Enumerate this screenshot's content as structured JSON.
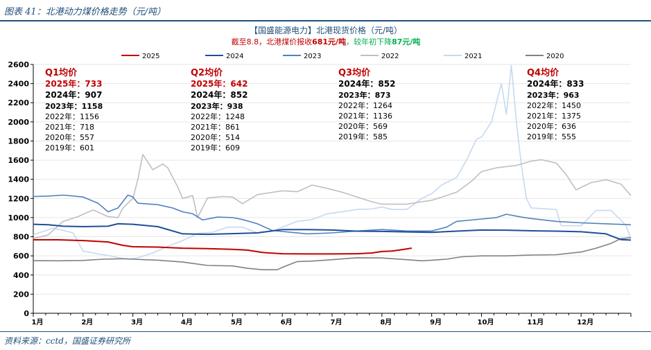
{
  "figure_title": "图表 41：北港动力煤价格走势（元/吨）",
  "source": "资料来源：cctd，国盛证券研究所",
  "colors": {
    "2025": "#c00000",
    "2024": "#1f4e99",
    "2023": "#4f81bd",
    "2022": "#bfbfbf",
    "2021": "#c5d9f1",
    "2020": "#808080",
    "q_title": "#c00000",
    "rule": "#1f4e79",
    "green": "#00b050"
  },
  "chart_data": {
    "type": "line",
    "title": "【国盛能源电力】北港现货价格（元/吨）",
    "subtitle_parts": [
      {
        "text": "截至8.8，北港煤价报收",
        "color": "red"
      },
      {
        "text": "681元/吨",
        "color": "red"
      },
      {
        "text": "，较年初下降",
        "color": "green"
      },
      {
        "text": "87元/吨",
        "color": "green"
      }
    ],
    "ylim": [
      0,
      2600
    ],
    "yticks": [
      "0",
      "200",
      "400",
      "600",
      "800",
      "1000",
      "1200",
      "1400",
      "1600",
      "1800",
      "2000",
      "2200",
      "2400",
      "2600"
    ],
    "xticks": [
      "1月",
      "2月",
      "3月",
      "4月",
      "5月",
      "6月",
      "7月",
      "8月",
      "9月",
      "10月",
      "11月",
      "12月"
    ],
    "legend": [
      "2025",
      "2024",
      "2023",
      "2022",
      "2021",
      "2020"
    ],
    "legend_position": "top",
    "series": [
      {
        "name": "2025",
        "points": [
          [
            0,
            768
          ],
          [
            0.5,
            768
          ],
          [
            1,
            760
          ],
          [
            1.5,
            745
          ],
          [
            1.8,
            710
          ],
          [
            2,
            695
          ],
          [
            2.5,
            692
          ],
          [
            3,
            680
          ],
          [
            3.5,
            675
          ],
          [
            4,
            668
          ],
          [
            4.3,
            660
          ],
          [
            4.6,
            635
          ],
          [
            5,
            622
          ],
          [
            5.5,
            620
          ],
          [
            6,
            620
          ],
          [
            6.5,
            622
          ],
          [
            6.8,
            630
          ],
          [
            7,
            645
          ],
          [
            7.2,
            650
          ],
          [
            7.4,
            665
          ],
          [
            7.6,
            681
          ]
        ]
      },
      {
        "name": "2024",
        "points": [
          [
            0,
            930
          ],
          [
            0.3,
            925
          ],
          [
            0.6,
            910
          ],
          [
            1,
            905
          ],
          [
            1.5,
            910
          ],
          [
            1.7,
            935
          ],
          [
            2,
            930
          ],
          [
            2.5,
            905
          ],
          [
            3,
            830
          ],
          [
            3.5,
            825
          ],
          [
            4,
            832
          ],
          [
            4.5,
            840
          ],
          [
            5,
            875
          ],
          [
            5.5,
            875
          ],
          [
            6,
            870
          ],
          [
            6.5,
            858
          ],
          [
            7,
            855
          ],
          [
            7.5,
            850
          ],
          [
            8,
            845
          ],
          [
            8.5,
            858
          ],
          [
            9,
            870
          ],
          [
            9.5,
            868
          ],
          [
            10,
            862
          ],
          [
            10.5,
            858
          ],
          [
            11,
            852
          ],
          [
            11.5,
            830
          ],
          [
            11.8,
            770
          ],
          [
            12,
            765
          ]
        ]
      },
      {
        "name": "2023",
        "points": [
          [
            0,
            1220
          ],
          [
            0.3,
            1225
          ],
          [
            0.6,
            1235
          ],
          [
            1,
            1215
          ],
          [
            1.3,
            1150
          ],
          [
            1.5,
            1060
          ],
          [
            1.7,
            1100
          ],
          [
            1.9,
            1235
          ],
          [
            2,
            1215
          ],
          [
            2.1,
            1150
          ],
          [
            2.5,
            1135
          ],
          [
            2.8,
            1100
          ],
          [
            3,
            1060
          ],
          [
            3.2,
            1040
          ],
          [
            3.4,
            975
          ],
          [
            3.7,
            1005
          ],
          [
            4,
            1000
          ],
          [
            4.2,
            980
          ],
          [
            4.5,
            935
          ],
          [
            4.8,
            865
          ],
          [
            5,
            855
          ],
          [
            5.5,
            830
          ],
          [
            6,
            840
          ],
          [
            6.5,
            860
          ],
          [
            7,
            875
          ],
          [
            7.5,
            860
          ],
          [
            8,
            860
          ],
          [
            8.3,
            900
          ],
          [
            8.5,
            960
          ],
          [
            9,
            985
          ],
          [
            9.3,
            1000
          ],
          [
            9.5,
            1035
          ],
          [
            9.8,
            1005
          ],
          [
            10,
            990
          ],
          [
            10.5,
            960
          ],
          [
            11,
            945
          ],
          [
            11.5,
            935
          ],
          [
            12,
            925
          ]
        ]
      },
      {
        "name": "2022",
        "points": [
          [
            0,
            780
          ],
          [
            0.3,
            820
          ],
          [
            0.6,
            960
          ],
          [
            0.9,
            1010
          ],
          [
            1.2,
            1080
          ],
          [
            1.5,
            1010
          ],
          [
            1.7,
            1000
          ],
          [
            1.8,
            1100
          ],
          [
            2,
            1200
          ],
          [
            2.1,
            1400
          ],
          [
            2.2,
            1660
          ],
          [
            2.4,
            1500
          ],
          [
            2.6,
            1560
          ],
          [
            2.7,
            1520
          ],
          [
            2.9,
            1320
          ],
          [
            3,
            1200
          ],
          [
            3.2,
            1230
          ],
          [
            3.3,
            1000
          ],
          [
            3.5,
            1205
          ],
          [
            3.8,
            1220
          ],
          [
            4,
            1215
          ],
          [
            4.2,
            1145
          ],
          [
            4.5,
            1240
          ],
          [
            5,
            1280
          ],
          [
            5.3,
            1270
          ],
          [
            5.6,
            1340
          ],
          [
            5.9,
            1305
          ],
          [
            6.2,
            1265
          ],
          [
            6.5,
            1215
          ],
          [
            6.8,
            1165
          ],
          [
            7,
            1140
          ],
          [
            7.5,
            1140
          ],
          [
            7.8,
            1165
          ],
          [
            8,
            1180
          ],
          [
            8.5,
            1265
          ],
          [
            8.8,
            1380
          ],
          [
            9,
            1480
          ],
          [
            9.3,
            1520
          ],
          [
            9.7,
            1545
          ],
          [
            10,
            1590
          ],
          [
            10.2,
            1605
          ],
          [
            10.5,
            1570
          ],
          [
            10.7,
            1450
          ],
          [
            10.9,
            1290
          ],
          [
            11.2,
            1365
          ],
          [
            11.5,
            1395
          ],
          [
            11.8,
            1350
          ],
          [
            12,
            1230
          ]
        ]
      },
      {
        "name": "2021",
        "points": [
          [
            0,
            820
          ],
          [
            0.4,
            890
          ],
          [
            0.8,
            840
          ],
          [
            1,
            650
          ],
          [
            1.3,
            620
          ],
          [
            1.5,
            605
          ],
          [
            1.7,
            580
          ],
          [
            1.9,
            565
          ],
          [
            2.1,
            580
          ],
          [
            2.4,
            630
          ],
          [
            2.7,
            700
          ],
          [
            3,
            760
          ],
          [
            3.3,
            835
          ],
          [
            3.6,
            845
          ],
          [
            3.9,
            900
          ],
          [
            4.2,
            900
          ],
          [
            4.5,
            840
          ],
          [
            4.8,
            860
          ],
          [
            5,
            900
          ],
          [
            5.3,
            960
          ],
          [
            5.6,
            980
          ],
          [
            5.9,
            1040
          ],
          [
            6.2,
            1060
          ],
          [
            6.5,
            1085
          ],
          [
            6.8,
            1090
          ],
          [
            7,
            1110
          ],
          [
            7.2,
            1085
          ],
          [
            7.5,
            1085
          ],
          [
            7.8,
            1200
          ],
          [
            8,
            1250
          ],
          [
            8.2,
            1340
          ],
          [
            8.5,
            1420
          ],
          [
            8.7,
            1600
          ],
          [
            8.9,
            1820
          ],
          [
            9.0,
            1840
          ],
          [
            9.2,
            2000
          ],
          [
            9.4,
            2400
          ],
          [
            9.5,
            2080
          ],
          [
            9.6,
            2590
          ],
          [
            9.7,
            2000
          ],
          [
            9.8,
            1550
          ],
          [
            9.9,
            1200
          ],
          [
            10,
            1100
          ],
          [
            10.5,
            1085
          ],
          [
            10.6,
            915
          ],
          [
            11,
            915
          ],
          [
            11.3,
            1075
          ],
          [
            11.6,
            1075
          ],
          [
            11.9,
            920
          ],
          [
            12,
            780
          ]
        ]
      },
      {
        "name": "2020",
        "points": [
          [
            0,
            550
          ],
          [
            0.5,
            548
          ],
          [
            1,
            552
          ],
          [
            1.4,
            565
          ],
          [
            1.8,
            570
          ],
          [
            2,
            565
          ],
          [
            2.5,
            555
          ],
          [
            3,
            535
          ],
          [
            3.5,
            500
          ],
          [
            4,
            495
          ],
          [
            4.3,
            470
          ],
          [
            4.6,
            455
          ],
          [
            4.9,
            455
          ],
          [
            5,
            480
          ],
          [
            5.3,
            540
          ],
          [
            5.6,
            545
          ],
          [
            6,
            560
          ],
          [
            6.5,
            580
          ],
          [
            7,
            578
          ],
          [
            7.5,
            560
          ],
          [
            7.8,
            548
          ],
          [
            8,
            555
          ],
          [
            8.3,
            565
          ],
          [
            8.6,
            590
          ],
          [
            9,
            600
          ],
          [
            9.5,
            600
          ],
          [
            10,
            608
          ],
          [
            10.5,
            612
          ],
          [
            11,
            640
          ],
          [
            11.3,
            680
          ],
          [
            11.6,
            730
          ],
          [
            11.8,
            780
          ],
          [
            12,
            790
          ]
        ]
      }
    ]
  },
  "quarters": [
    {
      "title": "Q1均价",
      "l1": "2025年：733",
      "l2": "2024年：907",
      "l3": "2023年：1158",
      "rows": [
        "2022年：1156",
        "2021年：718",
        "2020年：557",
        "2019年：601"
      ]
    },
    {
      "title": "Q2均价",
      "l1": "2025年：642",
      "l2": "2024年：852",
      "l3": "2023年：938",
      "rows": [
        "2022年：1248",
        "2021年：861",
        "2020年：514",
        "2019年：609"
      ]
    },
    {
      "title": "Q3均价",
      "l1": "",
      "l2": "2024年：852",
      "l3": "2023年：873",
      "rows": [
        "2022年：1264",
        "2021年：1136",
        "2020年：569",
        "2019年：585"
      ]
    },
    {
      "title": "Q4均价",
      "l1": "",
      "l2": "2024年：833",
      "l3": "2023年：963",
      "rows": [
        "2022年：1450",
        "2021年：1375",
        "2020年：636",
        "2019年：555"
      ]
    }
  ]
}
